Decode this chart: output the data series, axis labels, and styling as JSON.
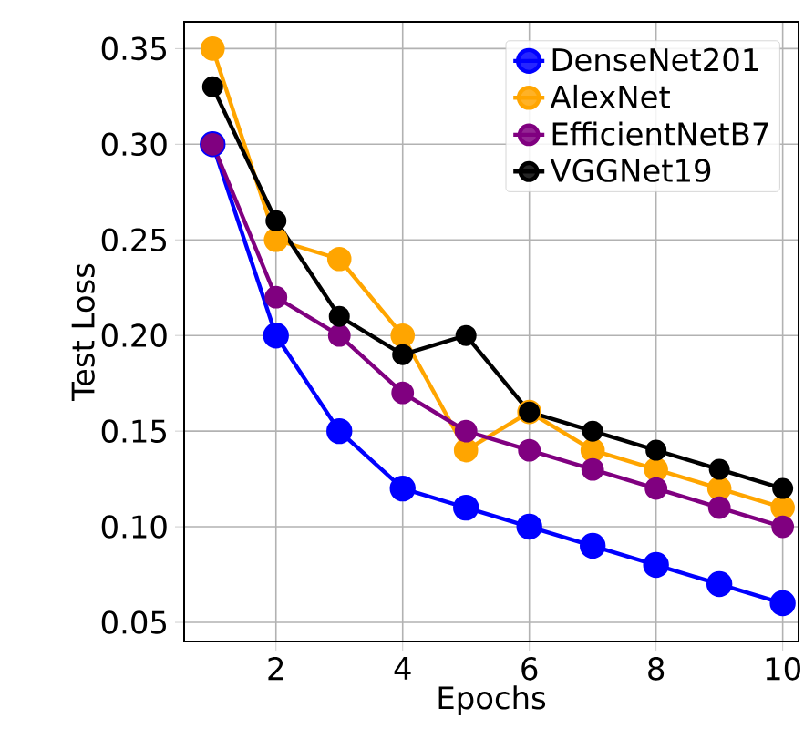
{
  "chart_data": {
    "type": "line",
    "xlabel": "Epochs",
    "ylabel": "Test Loss",
    "x": [
      1,
      2,
      3,
      4,
      5,
      6,
      7,
      8,
      9,
      10
    ],
    "series": [
      {
        "name": "DenseNet201",
        "color": "#0000ff",
        "values": [
          0.3,
          0.2,
          0.15,
          0.12,
          0.11,
          0.1,
          0.09,
          0.08,
          0.07,
          0.06
        ]
      },
      {
        "name": "AlexNet",
        "color": "#ffa500",
        "values": [
          0.35,
          0.25,
          0.24,
          0.2,
          0.14,
          0.16,
          0.14,
          0.13,
          0.12,
          0.11
        ]
      },
      {
        "name": "EfficientNetB7",
        "color": "#800080",
        "values": [
          0.3,
          0.22,
          0.2,
          0.17,
          0.15,
          0.14,
          0.13,
          0.12,
          0.11,
          0.1
        ]
      },
      {
        "name": "VGGNet19",
        "color": "#000000",
        "values": [
          0.33,
          0.26,
          0.21,
          0.19,
          0.2,
          0.16,
          0.15,
          0.14,
          0.13,
          0.12
        ]
      }
    ],
    "xlim": [
      0.55,
      10.25
    ],
    "ylim": [
      0.04,
      0.364
    ],
    "xticks": [
      2,
      4,
      6,
      8,
      10
    ],
    "yticks": [
      {
        "value": 0.05,
        "label": "0.05"
      },
      {
        "value": 0.1,
        "label": "0.10"
      },
      {
        "value": 0.15,
        "label": "0.15"
      },
      {
        "value": 0.2,
        "label": "0.20"
      },
      {
        "value": 0.25,
        "label": "0.25"
      },
      {
        "value": 0.3,
        "label": "0.30"
      },
      {
        "value": 0.35,
        "label": "0.35"
      }
    ],
    "grid": true,
    "legend": "top right",
    "marker": "circle",
    "line_style": "solid"
  }
}
